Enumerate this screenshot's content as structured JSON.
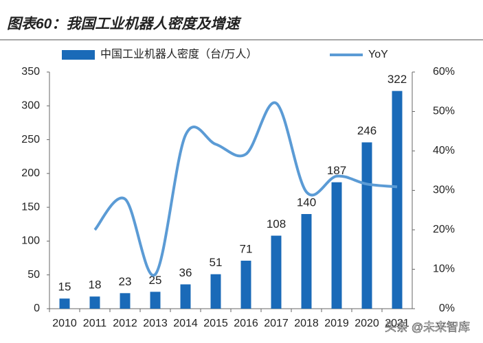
{
  "chart_data": {
    "type": "bar-line",
    "title": "图表60：我国工业机器人密度及增速",
    "categories": [
      "2010",
      "2011",
      "2012",
      "2013",
      "2014",
      "2015",
      "2016",
      "2017",
      "2018",
      "2019",
      "2020",
      "2021"
    ],
    "series": [
      {
        "name": "中国工业机器人密度（台/万人）",
        "color": "#1a6ab8",
        "type": "bar",
        "values": [
          15,
          18,
          23,
          25,
          36,
          51,
          71,
          108,
          140,
          187,
          246,
          322
        ]
      },
      {
        "name": "YoY",
        "color": "#5b9bd5",
        "type": "line",
        "axis": "y2",
        "values": [
          null,
          20,
          27.8,
          8.7,
          44,
          41.7,
          39.2,
          52.1,
          29.6,
          33.6,
          31.6,
          30.9
        ]
      }
    ],
    "ylim": [
      0,
      350
    ],
    "yticks": [
      0,
      50,
      100,
      150,
      200,
      250,
      300,
      350
    ],
    "y2lim": [
      0,
      60
    ],
    "y2ticks": [
      {
        "value": 0,
        "label": "0%"
      },
      {
        "value": 10,
        "label": "10%"
      },
      {
        "value": 20,
        "label": "20%"
      },
      {
        "value": 30,
        "label": "30%"
      },
      {
        "value": 40,
        "label": "40%"
      },
      {
        "value": 50,
        "label": "50%"
      },
      {
        "value": 60,
        "label": "60%"
      }
    ],
    "watermark": "头条 @未来智库"
  }
}
